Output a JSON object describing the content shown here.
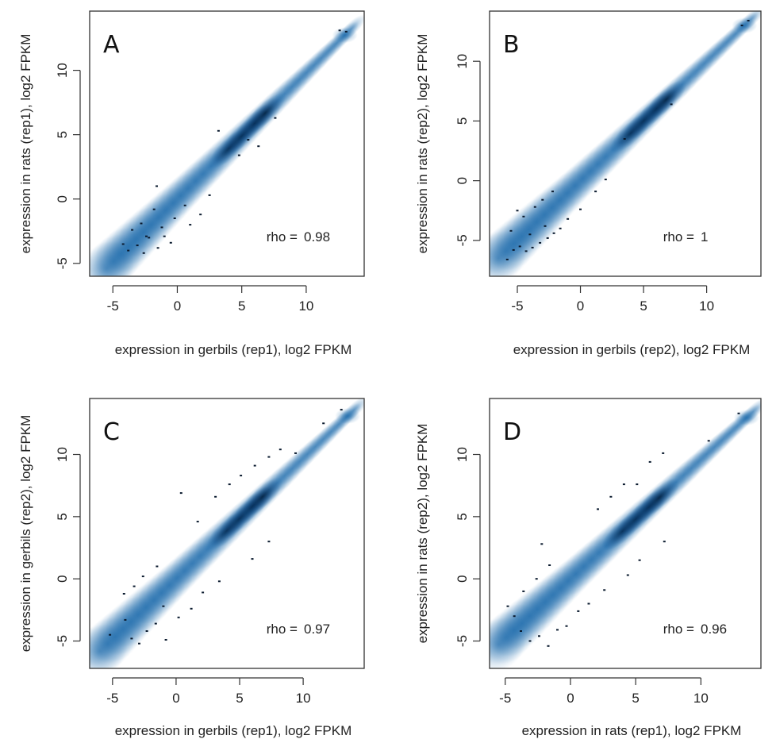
{
  "chart_data": [
    {
      "type": "scatter",
      "panel_label": "A",
      "xlabel": "expression in gerbils (rep1), log2 FPKM",
      "ylabel": "expression in rats (rep1), log2 FPKM",
      "xlim": [
        -6.8,
        14.5
      ],
      "ylim": [
        -6,
        14.6
      ],
      "xticks": [
        -5,
        0,
        5,
        10
      ],
      "yticks": [
        -5,
        0,
        5,
        10
      ],
      "grid": false,
      "density_color": "#0b5fa5",
      "annotation": {
        "label": "rho =",
        "value": "0.98"
      },
      "trend": {
        "slope": 0.98,
        "intercept": 0.0,
        "x_range": [
          -5.5,
          13.5
        ]
      },
      "outlier_points": [
        [
          -4.2,
          -3.5
        ],
        [
          -3.8,
          -4.0
        ],
        [
          -3.1,
          -3.6
        ],
        [
          -2.6,
          -4.2
        ],
        [
          -2.2,
          -3.0
        ],
        [
          -1.5,
          -3.8
        ],
        [
          -1.0,
          -2.9
        ],
        [
          -0.5,
          -3.4
        ],
        [
          -3.5,
          -2.4
        ],
        [
          -2.8,
          -1.9
        ],
        [
          -1.8,
          -0.8
        ],
        [
          -2.4,
          -2.9
        ],
        [
          -1.2,
          -2.2
        ],
        [
          1.0,
          -2.0
        ],
        [
          1.8,
          -1.2
        ],
        [
          2.5,
          0.3
        ],
        [
          4.8,
          3.4
        ],
        [
          6.3,
          4.1
        ],
        [
          7.6,
          6.3
        ],
        [
          5.5,
          4.6
        ],
        [
          -0.2,
          -1.5
        ],
        [
          12.6,
          13.1
        ],
        [
          13.1,
          13.0
        ],
        [
          3.2,
          5.3
        ],
        [
          0.6,
          -0.5
        ],
        [
          -1.6,
          1.0
        ]
      ]
    },
    {
      "type": "scatter",
      "panel_label": "B",
      "xlabel": "expression in gerbils (rep2), log2 FPKM",
      "ylabel": "expression in rats (rep2), log2 FPKM",
      "xlim": [
        -7.2,
        14.3
      ],
      "ylim": [
        -8,
        14.2
      ],
      "xticks": [
        -5,
        0,
        5,
        10
      ],
      "yticks": [
        -5,
        0,
        5,
        10
      ],
      "grid": false,
      "density_color": "#0b5fa5",
      "annotation": {
        "label": "rho =",
        "value": "1"
      },
      "trend": {
        "slope": 1.0,
        "intercept": 0.0,
        "x_range": [
          -6.5,
          13.5
        ]
      },
      "outlier_points": [
        [
          -5.3,
          -5.8
        ],
        [
          -4.8,
          -5.5
        ],
        [
          -4.3,
          -5.9
        ],
        [
          -3.8,
          -5.6
        ],
        [
          -3.2,
          -5.2
        ],
        [
          -2.6,
          -4.8
        ],
        [
          -2.1,
          -4.4
        ],
        [
          -1.6,
          -4.0
        ],
        [
          -5.0,
          -2.5
        ],
        [
          -4.5,
          -3.0
        ],
        [
          -3.6,
          -2.2
        ],
        [
          -3.0,
          -1.6
        ],
        [
          -2.2,
          -0.9
        ],
        [
          -5.5,
          -4.2
        ],
        [
          -4.0,
          -4.5
        ],
        [
          -1.0,
          -3.2
        ],
        [
          0.0,
          -2.4
        ],
        [
          1.2,
          -0.9
        ],
        [
          2.0,
          0.1
        ],
        [
          3.5,
          3.5
        ],
        [
          7.2,
          6.4
        ],
        [
          12.8,
          13.0
        ],
        [
          13.3,
          13.4
        ],
        [
          -5.8,
          -6.6
        ],
        [
          -2.8,
          -3.8
        ]
      ]
    },
    {
      "type": "scatter",
      "panel_label": "C",
      "xlabel": "expression in gerbils (rep1), log2 FPKM",
      "ylabel": "expression in gerbils (rep2), log2 FPKM",
      "xlim": [
        -6.8,
        14.8
      ],
      "ylim": [
        -7.2,
        14.5
      ],
      "xticks": [
        -5,
        0,
        5,
        10
      ],
      "yticks": [
        -5,
        0,
        5,
        10
      ],
      "grid": false,
      "density_color": "#0b5fa5",
      "annotation": {
        "label": "rho =",
        "value": "0.97"
      },
      "trend": {
        "slope": 0.97,
        "intercept": 0.0,
        "x_range": [
          -6.0,
          14.0
        ]
      },
      "outlier_points": [
        [
          -5.2,
          -4.5
        ],
        [
          -4.0,
          -3.3
        ],
        [
          -3.5,
          -4.8
        ],
        [
          -2.9,
          -5.2
        ],
        [
          -2.3,
          -4.2
        ],
        [
          -1.6,
          -3.6
        ],
        [
          -0.8,
          -4.9
        ],
        [
          0.2,
          -3.1
        ],
        [
          1.2,
          -2.4
        ],
        [
          -4.1,
          -1.2
        ],
        [
          -3.3,
          -0.6
        ],
        [
          -2.6,
          0.2
        ],
        [
          -1.5,
          1.0
        ],
        [
          0.4,
          6.9
        ],
        [
          1.7,
          4.6
        ],
        [
          3.1,
          6.6
        ],
        [
          4.2,
          7.6
        ],
        [
          5.1,
          8.3
        ],
        [
          6.2,
          9.1
        ],
        [
          7.3,
          9.8
        ],
        [
          8.2,
          10.4
        ],
        [
          9.4,
          10.1
        ],
        [
          7.3,
          3.0
        ],
        [
          6.0,
          1.6
        ],
        [
          3.4,
          -0.2
        ],
        [
          2.1,
          -1.1
        ],
        [
          -1.0,
          -2.2
        ],
        [
          13.0,
          13.6
        ],
        [
          11.6,
          12.5
        ]
      ]
    },
    {
      "type": "scatter",
      "panel_label": "D",
      "xlabel": "expression in rats (rep1), log2 FPKM",
      "ylabel": "expression in rats (rep2), log2 FPKM",
      "xlim": [
        -6.2,
        14.6
      ],
      "ylim": [
        -7.2,
        14.5
      ],
      "xticks": [
        -5,
        0,
        5,
        10
      ],
      "yticks": [
        -5,
        0,
        5,
        10
      ],
      "grid": false,
      "density_color": "#0b5fa5",
      "annotation": {
        "label": "rho =",
        "value": "0.96"
      },
      "trend": {
        "slope": 0.96,
        "intercept": 0.0,
        "x_range": [
          -5.5,
          14.0
        ]
      },
      "outlier_points": [
        [
          -4.3,
          -3.0
        ],
        [
          -3.8,
          -4.2
        ],
        [
          -3.1,
          -5.0
        ],
        [
          -2.4,
          -4.6
        ],
        [
          -1.7,
          -5.4
        ],
        [
          -1.0,
          -4.1
        ],
        [
          -0.3,
          -3.8
        ],
        [
          0.6,
          -2.6
        ],
        [
          1.4,
          -2.0
        ],
        [
          -3.6,
          -1.0
        ],
        [
          -2.6,
          0.0
        ],
        [
          -1.6,
          1.1
        ],
        [
          -2.2,
          2.8
        ],
        [
          2.1,
          5.6
        ],
        [
          3.1,
          6.6
        ],
        [
          4.1,
          7.6
        ],
        [
          5.1,
          7.6
        ],
        [
          6.1,
          9.4
        ],
        [
          7.1,
          10.1
        ],
        [
          7.2,
          3.0
        ],
        [
          5.3,
          1.5
        ],
        [
          4.4,
          0.3
        ],
        [
          2.6,
          -0.9
        ],
        [
          12.9,
          13.3
        ],
        [
          10.6,
          11.1
        ],
        [
          -4.8,
          -2.2
        ]
      ]
    }
  ]
}
